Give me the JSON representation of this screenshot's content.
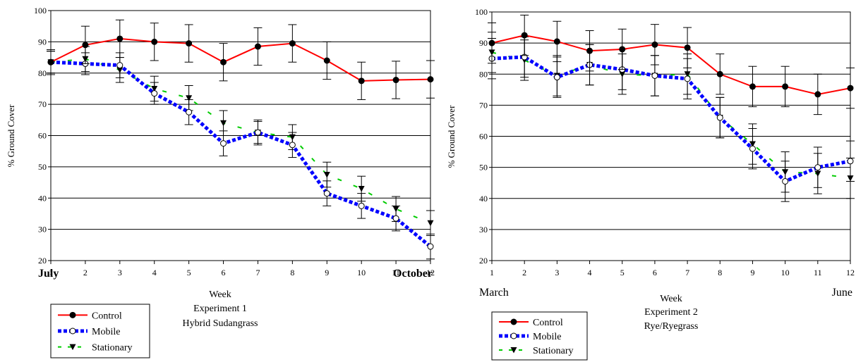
{
  "chart_data": [
    {
      "type": "line",
      "ylabel": "% Ground Cover",
      "xlabel": "Week",
      "subtitle": "Experiment 1",
      "title": "Hybrid Sudangrass",
      "start_label": "July",
      "end_label": "October",
      "month_labels_bold": true,
      "xlim": [
        1,
        12
      ],
      "ylim": [
        20,
        100
      ],
      "x": [
        1,
        2,
        3,
        4,
        5,
        6,
        7,
        8,
        9,
        10,
        11,
        12
      ],
      "yticks": [
        20,
        30,
        40,
        50,
        60,
        70,
        80,
        90,
        100
      ],
      "grid": "horizontal",
      "legend": "bottom-left, below chart",
      "series": [
        {
          "name": "Control",
          "color": "#ff0000",
          "line": "solid",
          "marker": "filled-circle",
          "values": [
            83.5,
            89.0,
            91.0,
            90.0,
            89.5,
            83.5,
            88.5,
            89.5,
            84.0,
            77.5,
            77.8,
            78.0
          ],
          "errors": [
            4.0,
            6.0,
            6.0,
            6.0,
            6.0,
            6.0,
            6.0,
            6.0,
            6.0,
            6.0,
            6.0,
            6.0
          ]
        },
        {
          "name": "Mobile",
          "color": "#0000ff",
          "line": "dotted",
          "marker": "open-circle",
          "values": [
            83.5,
            83.0,
            82.5,
            73.5,
            67.5,
            57.5,
            61.0,
            57.0,
            41.5,
            37.5,
            33.5,
            24.5
          ],
          "errors": [
            3.5,
            3.5,
            4.0,
            3.5,
            4.0,
            4.0,
            3.5,
            4.0,
            4.0,
            4.0,
            4.0,
            4.0
          ]
        },
        {
          "name": "Stationary",
          "color": "#00cc00",
          "line": "dashed",
          "marker": "filled-triangle-down",
          "values": [
            83.5,
            84.5,
            81.0,
            75.0,
            72.0,
            64.0,
            61.0,
            59.5,
            47.5,
            43.0,
            36.5,
            32.0
          ],
          "errors": [
            3.5,
            4.0,
            4.0,
            4.0,
            4.0,
            4.0,
            4.0,
            4.0,
            4.0,
            4.0,
            4.0,
            4.0
          ]
        }
      ]
    },
    {
      "type": "line",
      "ylabel": "% Ground Cover",
      "xlabel": "Week",
      "subtitle": "Experiment 2",
      "title": "Rye/Ryegrass",
      "start_label": "March",
      "end_label": "June",
      "month_labels_bold": false,
      "xlim": [
        1,
        12
      ],
      "ylim": [
        20,
        100
      ],
      "x": [
        1,
        2,
        3,
        4,
        5,
        6,
        7,
        8,
        9,
        10,
        11,
        12
      ],
      "yticks": [
        20,
        30,
        40,
        50,
        60,
        70,
        80,
        90,
        100
      ],
      "grid": "horizontal",
      "legend": "bottom-left, below chart",
      "series": [
        {
          "name": "Control",
          "color": "#ff0000",
          "line": "solid",
          "marker": "filled-circle",
          "values": [
            90.0,
            92.5,
            90.5,
            87.5,
            88.0,
            89.5,
            88.5,
            80.0,
            76.0,
            76.0,
            73.5,
            75.5
          ],
          "errors": [
            6.5,
            6.5,
            6.5,
            6.5,
            6.5,
            6.5,
            6.5,
            6.5,
            6.5,
            6.5,
            6.5,
            6.5
          ]
        },
        {
          "name": "Mobile",
          "color": "#0000ff",
          "line": "dotted",
          "marker": "open-circle",
          "values": [
            85.0,
            85.5,
            79.0,
            83.0,
            81.5,
            79.5,
            78.5,
            66.0,
            56.0,
            45.5,
            50.0,
            52.0
          ],
          "errors": [
            6.5,
            6.5,
            6.5,
            6.5,
            6.5,
            6.5,
            6.5,
            6.5,
            6.5,
            6.5,
            6.5,
            6.5
          ]
        },
        {
          "name": "Stationary",
          "color": "#00cc00",
          "line": "dashed",
          "marker": "filled-triangle-down",
          "values": [
            87.0,
            84.5,
            79.5,
            83.0,
            80.0,
            79.5,
            80.0,
            66.0,
            57.5,
            48.5,
            48.0,
            46.5
          ],
          "errors": [
            6.5,
            6.5,
            6.5,
            6.5,
            6.5,
            6.5,
            6.5,
            6.5,
            6.5,
            6.5,
            6.5,
            6.5
          ]
        }
      ]
    }
  ]
}
